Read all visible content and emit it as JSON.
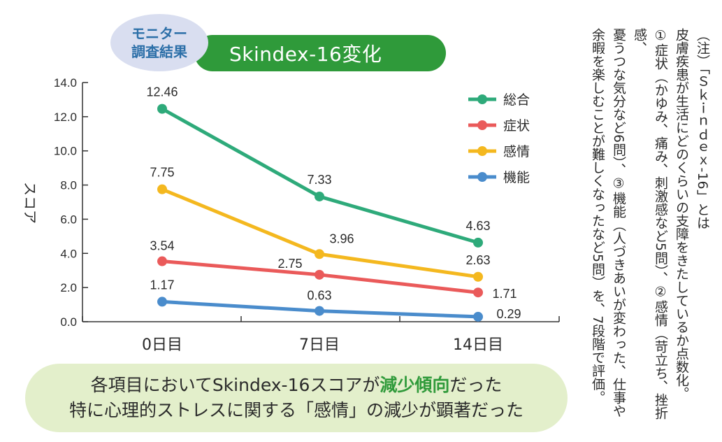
{
  "header": {
    "bubble_lines": [
      "モニター",
      "調査結果"
    ],
    "title": "Skindex-16変化"
  },
  "chart_data": {
    "type": "line",
    "categories": [
      "0日目",
      "7日目",
      "14日目"
    ],
    "ylabel": "スコア",
    "ylim": [
      0,
      14
    ],
    "yticks": [
      "0.0",
      "2.0",
      "4.0",
      "6.0",
      "8.0",
      "10.0",
      "12.0",
      "14.0"
    ],
    "grid": false,
    "legend_position": "top-right",
    "series": [
      {
        "name": "総合",
        "color": "#2eaa7a",
        "values": [
          12.46,
          7.33,
          4.63
        ],
        "labels": [
          "12.46",
          "7.33",
          "4.63"
        ]
      },
      {
        "name": "症状",
        "color": "#ea5a5a",
        "values": [
          3.54,
          2.75,
          1.71
        ],
        "labels": [
          "3.54",
          "2.75",
          "1.71"
        ]
      },
      {
        "name": "感情",
        "color": "#f4b81f",
        "values": [
          7.75,
          3.96,
          2.63
        ],
        "labels": [
          "7.75",
          "3.96",
          "2.63"
        ]
      },
      {
        "name": "機能",
        "color": "#4a8ccc",
        "values": [
          1.17,
          0.63,
          0.29
        ],
        "labels": [
          "1.17",
          "0.63",
          "0.29"
        ]
      }
    ]
  },
  "summary": {
    "line1_pre": "各項目においてSkindex-16スコアが",
    "line1_highlight": "減少傾向",
    "line1_post": "だった",
    "line2": "特に心理的ストレスに関する「感情」の減少が顕著だった"
  },
  "note": {
    "line1": "（注）「Ｓｋｉｎｄｅｘ-16」とは",
    "line2": "皮膚疾患が生活にどのくらいの支障をきたしているか点数化。",
    "line3": "①症状（かゆみ、痛み、刺激感など5問）、②感情（苛立ち、挫折感、",
    "line4": "憂うつな気分など6問）、③機能（人づきあいが変わった、仕事や",
    "line5": "余暇を楽しむことが難しくなったなど5問）を、7段階で評価。"
  }
}
